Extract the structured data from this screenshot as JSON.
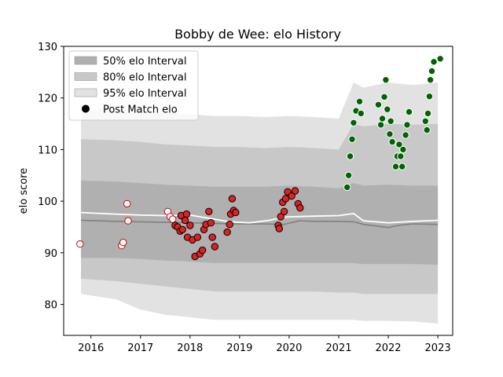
{
  "chart_data": {
    "type": "scatter",
    "title": "Bobby de Wee: elo History",
    "xlabel": "",
    "ylabel": "elo score",
    "xlim": [
      2015.45,
      2023.3
    ],
    "ylim": [
      74,
      130
    ],
    "xticks": [
      2016,
      2017,
      2018,
      2019,
      2020,
      2021,
      2022,
      2023
    ],
    "yticks": [
      80,
      90,
      100,
      110,
      120,
      130
    ],
    "grid": false,
    "legend_position": "top-left",
    "legend": [
      {
        "label": "50% elo Interval",
        "kind": "band",
        "color": "#b0b0b0"
      },
      {
        "label": "80% elo Interval",
        "kind": "band",
        "color": "#c8c8c8"
      },
      {
        "label": "95% elo Interval",
        "kind": "band",
        "color": "#e2e2e2"
      },
      {
        "label": "Post Match elo",
        "kind": "marker",
        "color": "#000000"
      }
    ],
    "bands": {
      "x": [
        2015.8,
        2016.5,
        2017.0,
        2017.5,
        2018.0,
        2018.5,
        2019.0,
        2019.5,
        2020.0,
        2020.5,
        2021.0,
        2021.3,
        2021.5,
        2022.0,
        2022.5,
        2023.0
      ],
      "p95_hi": [
        118.0,
        117.8,
        117.5,
        117.0,
        116.8,
        116.5,
        116.5,
        116.3,
        116.5,
        116.3,
        116.0,
        123.0,
        122.0,
        123.0,
        122.5,
        123.0
      ],
      "p95_lo": [
        82.0,
        81.0,
        79.0,
        78.0,
        77.5,
        77.0,
        77.0,
        77.0,
        77.0,
        77.0,
        77.0,
        77.0,
        76.8,
        76.8,
        76.7,
        76.3
      ],
      "p80_hi": [
        112.0,
        111.8,
        111.5,
        111.0,
        110.8,
        110.5,
        110.5,
        110.3,
        110.5,
        110.3,
        110.0,
        115.0,
        114.5,
        115.0,
        114.8,
        115.0
      ],
      "p80_lo": [
        85.0,
        84.5,
        84.0,
        83.5,
        83.0,
        82.5,
        82.5,
        82.5,
        82.5,
        82.5,
        82.3,
        82.3,
        82.0,
        82.0,
        82.0,
        82.0
      ],
      "p50_hi": [
        104.0,
        103.8,
        103.5,
        103.2,
        103.0,
        102.8,
        102.8,
        102.8,
        103.0,
        102.8,
        102.5,
        103.5,
        103.0,
        103.2,
        103.0,
        103.0
      ],
      "p50_lo": [
        89.0,
        89.0,
        88.8,
        88.5,
        88.3,
        88.0,
        88.0,
        88.0,
        88.0,
        88.0,
        88.0,
        88.0,
        87.8,
        87.8,
        87.8,
        87.7
      ]
    },
    "median_line": {
      "x": [
        2015.8,
        2016.5,
        2017.0,
        2017.5,
        2018.0,
        2018.5,
        2019.0,
        2019.5,
        2019.9,
        2020.2,
        2020.5,
        2021.0,
        2021.3,
        2021.5,
        2022.0,
        2022.2,
        2022.5,
        2023.0
      ],
      "y": [
        96.3,
        96.1,
        96.0,
        95.9,
        95.8,
        95.7,
        95.6,
        95.6,
        95.5,
        96.2,
        96.1,
        96.1,
        96.0,
        95.5,
        94.9,
        95.3,
        95.6,
        95.5
      ],
      "color": "#808080"
    },
    "mean_line": {
      "x": [
        2015.8,
        2016.5,
        2017.0,
        2017.5,
        2018.0,
        2018.5,
        2018.8,
        2019.2,
        2019.6,
        2019.9,
        2020.1,
        2020.5,
        2021.0,
        2021.3,
        2021.5,
        2022.0,
        2022.5,
        2023.0
      ],
      "y": [
        97.8,
        97.5,
        97.3,
        97.2,
        97.3,
        96.5,
        96.0,
        95.8,
        96.3,
        96.9,
        97.0,
        97.1,
        97.2,
        97.6,
        96.2,
        95.8,
        96.1,
        96.3
      ],
      "color": "#ffffff"
    },
    "series": [
      {
        "marker_face": "#ffffff",
        "marker_edge": "#cc0000",
        "points": [
          [
            2015.78,
            91.7
          ],
          [
            2016.62,
            91.4
          ],
          [
            2016.65,
            92.0
          ],
          [
            2016.73,
            99.5
          ],
          [
            2016.75,
            96.2
          ],
          [
            2017.55,
            98.0
          ],
          [
            2017.6,
            97.0
          ],
          [
            2017.65,
            96.5
          ]
        ]
      },
      {
        "marker_face": "#dd2222",
        "marker_edge": "#000000",
        "points": [
          [
            2017.7,
            95.3
          ],
          [
            2017.75,
            95.0
          ],
          [
            2017.8,
            94.2
          ],
          [
            2017.82,
            97.2
          ],
          [
            2017.85,
            94.5
          ],
          [
            2017.9,
            96.3
          ],
          [
            2017.93,
            97.5
          ],
          [
            2017.95,
            93.0
          ],
          [
            2018.0,
            95.3
          ],
          [
            2018.05,
            92.5
          ],
          [
            2018.1,
            89.3
          ],
          [
            2018.15,
            93.0
          ],
          [
            2018.2,
            89.8
          ],
          [
            2018.25,
            90.5
          ],
          [
            2018.28,
            94.5
          ],
          [
            2018.32,
            95.5
          ],
          [
            2018.38,
            98.0
          ],
          [
            2018.42,
            95.8
          ],
          [
            2018.45,
            93.0
          ],
          [
            2018.5,
            91.2
          ],
          [
            2018.75,
            94.0
          ],
          [
            2018.8,
            95.5
          ],
          [
            2018.82,
            97.5
          ],
          [
            2018.85,
            100.5
          ],
          [
            2018.88,
            98.2
          ],
          [
            2018.92,
            97.8
          ],
          [
            2019.78,
            95.3
          ],
          [
            2019.8,
            94.7
          ],
          [
            2019.83,
            97.0
          ],
          [
            2019.87,
            99.8
          ],
          [
            2019.9,
            98.0
          ],
          [
            2019.93,
            100.5
          ],
          [
            2019.97,
            101.8
          ],
          [
            2020.05,
            101.0
          ],
          [
            2020.12,
            102.0
          ],
          [
            2020.18,
            99.5
          ],
          [
            2020.22,
            98.7
          ]
        ]
      },
      {
        "marker_face": "#006400",
        "marker_edge": "#ffffff",
        "points": [
          [
            2021.17,
            102.7
          ],
          [
            2021.2,
            105.0
          ],
          [
            2021.23,
            108.7
          ],
          [
            2021.27,
            112.0
          ],
          [
            2021.3,
            115.2
          ],
          [
            2021.35,
            117.5
          ],
          [
            2021.42,
            119.3
          ],
          [
            2021.45,
            117.0
          ],
          [
            2021.8,
            118.7
          ],
          [
            2021.85,
            114.8
          ],
          [
            2021.88,
            116.0
          ],
          [
            2021.92,
            120.2
          ],
          [
            2021.95,
            123.5
          ],
          [
            2021.98,
            117.8
          ],
          [
            2022.03,
            113.0
          ],
          [
            2022.05,
            115.5
          ],
          [
            2022.08,
            111.5
          ],
          [
            2022.15,
            106.7
          ],
          [
            2022.18,
            108.7
          ],
          [
            2022.22,
            111.0
          ],
          [
            2022.25,
            108.7
          ],
          [
            2022.28,
            106.7
          ],
          [
            2022.3,
            110.0
          ],
          [
            2022.35,
            112.8
          ],
          [
            2022.38,
            114.8
          ],
          [
            2022.42,
            117.3
          ],
          [
            2022.75,
            115.5
          ],
          [
            2022.78,
            113.8
          ],
          [
            2022.8,
            117.0
          ],
          [
            2022.83,
            120.3
          ],
          [
            2022.85,
            123.5
          ],
          [
            2022.88,
            125.2
          ],
          [
            2022.92,
            127.0
          ],
          [
            2023.05,
            127.6
          ]
        ]
      }
    ]
  }
}
